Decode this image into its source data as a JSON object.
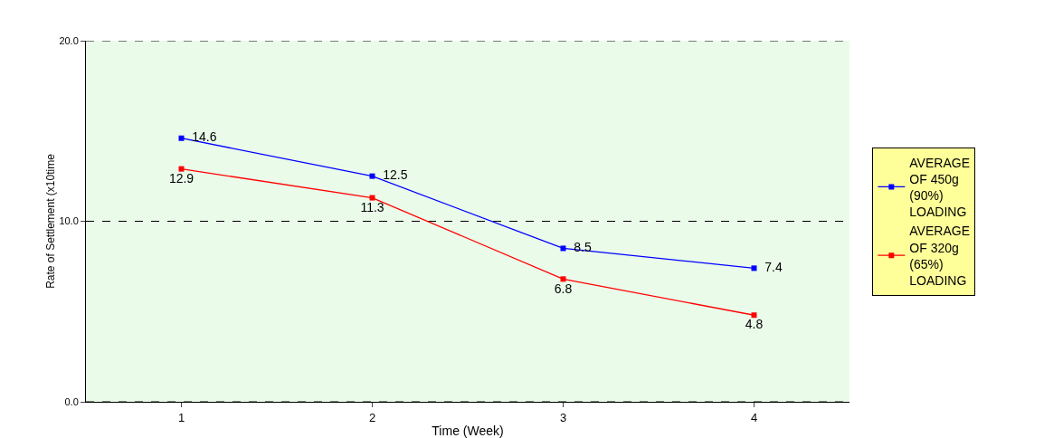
{
  "chart_data": {
    "type": "line",
    "xlabel": "Time (Week)",
    "ylabel": "Rate of Settlement (x10time",
    "categories": [
      "1",
      "2",
      "3",
      "4"
    ],
    "series": [
      {
        "name": "AVERAGE OF 450g (90%) LOADING",
        "color": "#0000ff",
        "values": [
          14.6,
          12.5,
          8.5,
          7.4
        ]
      },
      {
        "name": "AVERAGE OF 320g (65%) LOADING",
        "color": "#ff0000",
        "values": [
          12.9,
          11.3,
          6.8,
          4.8
        ]
      }
    ],
    "ylim": [
      0,
      20
    ],
    "yticks": [
      {
        "value": 0,
        "label": "0.0"
      },
      {
        "value": 10,
        "label": "10.0"
      },
      {
        "value": 20,
        "label": "20.0"
      }
    ],
    "grid": "y",
    "legend": "right",
    "marker": "square",
    "line_style": "solid",
    "data_labels": true
  }
}
